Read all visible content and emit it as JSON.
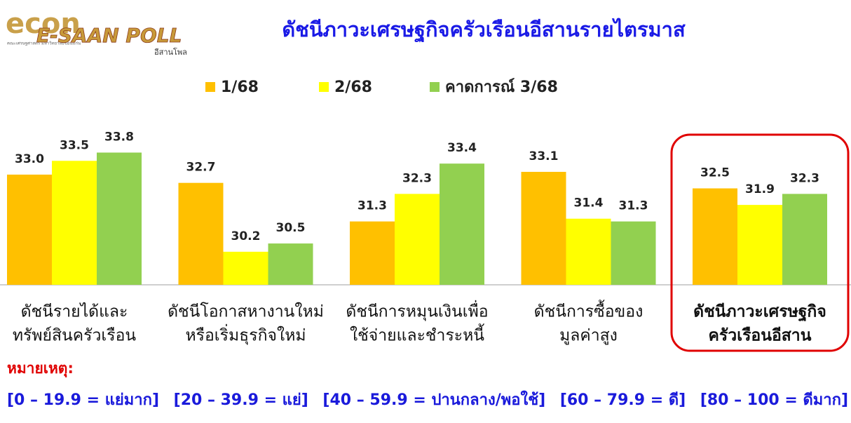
{
  "logo": {
    "brand": "econ",
    "subtitle": "คณะเศรษฐศาสตร์ มหาวิทยาลัยขอนแก่น",
    "poll": "E-SAAN POLL",
    "poll_thai": "อีสานโพล"
  },
  "chart_data": {
    "type": "bar",
    "title": "ดัชนีภาวะเศรษฐกิจครัวเรือนอีสานรายไตรมาส",
    "categories": [
      [
        "ดัชนีรายได้และ",
        "ทรัพย์สินครัวเรือน"
      ],
      [
        "ดัชนีโอกาสหางานใหม่",
        "หรือเริ่มธุรกิจใหม่"
      ],
      [
        "ดัชนีการหมุนเงินเพื่อ",
        "ใช้จ่ายและชำระหนี้"
      ],
      [
        "ดัชนีการซื้อของ",
        "มูลค่าสูง"
      ],
      [
        "ดัชนีภาวะเศรษฐกิจ",
        "ครัวเรือนอีสาน"
      ]
    ],
    "series": [
      {
        "name": "1/68",
        "color": "#FFC000",
        "values": [
          33.0,
          32.7,
          31.3,
          33.1,
          32.5
        ],
        "value_labels": [
          "33.0",
          "32.7",
          "31.3",
          "33.1",
          "32.5"
        ]
      },
      {
        "name": "2/68",
        "color": "#FFFF00",
        "values": [
          33.5,
          30.2,
          32.3,
          31.4,
          31.9
        ]
      },
      {
        "name": "คาดการณ์ 3/68",
        "color": "#92D050",
        "values": [
          33.8,
          30.5,
          33.4,
          31.3,
          32.3
        ]
      }
    ],
    "ylim": [
      29,
      34.5
    ],
    "legend": "top"
  },
  "notes": {
    "title": "หมายเหตุ:",
    "items": [
      "[0 – 19.9 = แย่มาก]",
      "[20 – 39.9 = แย่]",
      "[40 – 59.9 = ปานกลาง/พอใช้]",
      "[60 – 79.9 = ดี]",
      "[80 – 100 = ดีมาก]"
    ]
  }
}
